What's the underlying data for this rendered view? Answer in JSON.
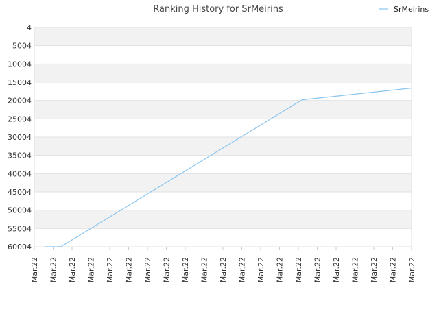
{
  "chart_data": {
    "type": "line",
    "title": "Ranking History for SrMeirins",
    "xlabel": "",
    "ylabel": "",
    "y_reversed": true,
    "ylim": [
      4,
      60004
    ],
    "y_ticks": [
      4,
      5004,
      10004,
      15004,
      20004,
      25004,
      30004,
      35004,
      40004,
      45004,
      50004,
      55004,
      60004
    ],
    "categories": [
      "Mar.22",
      "Mar.22",
      "Mar.22",
      "Mar.22",
      "Mar.22",
      "Mar.22",
      "Mar.22",
      "Mar.22",
      "Mar.22",
      "Mar.22",
      "Mar.22",
      "Mar.22",
      "Mar.22",
      "Mar.22",
      "Mar.22",
      "Mar.22",
      "Mar.22",
      "Mar.22",
      "Mar.22",
      "Mar.22",
      "Mar.22"
    ],
    "legend": {
      "position": "top-right"
    },
    "grid": true,
    "band_colors": [
      "#f2f2f2",
      "#ffffff"
    ],
    "series": [
      {
        "name": "SrMeirins",
        "color": "#88c4f0",
        "points": [
          {
            "x": 0.6,
            "y": 60004
          },
          {
            "x": 1.4,
            "y": 60004
          },
          {
            "x": 14.2,
            "y": 19804
          },
          {
            "x": 20.0,
            "y": 16604
          }
        ]
      }
    ]
  }
}
